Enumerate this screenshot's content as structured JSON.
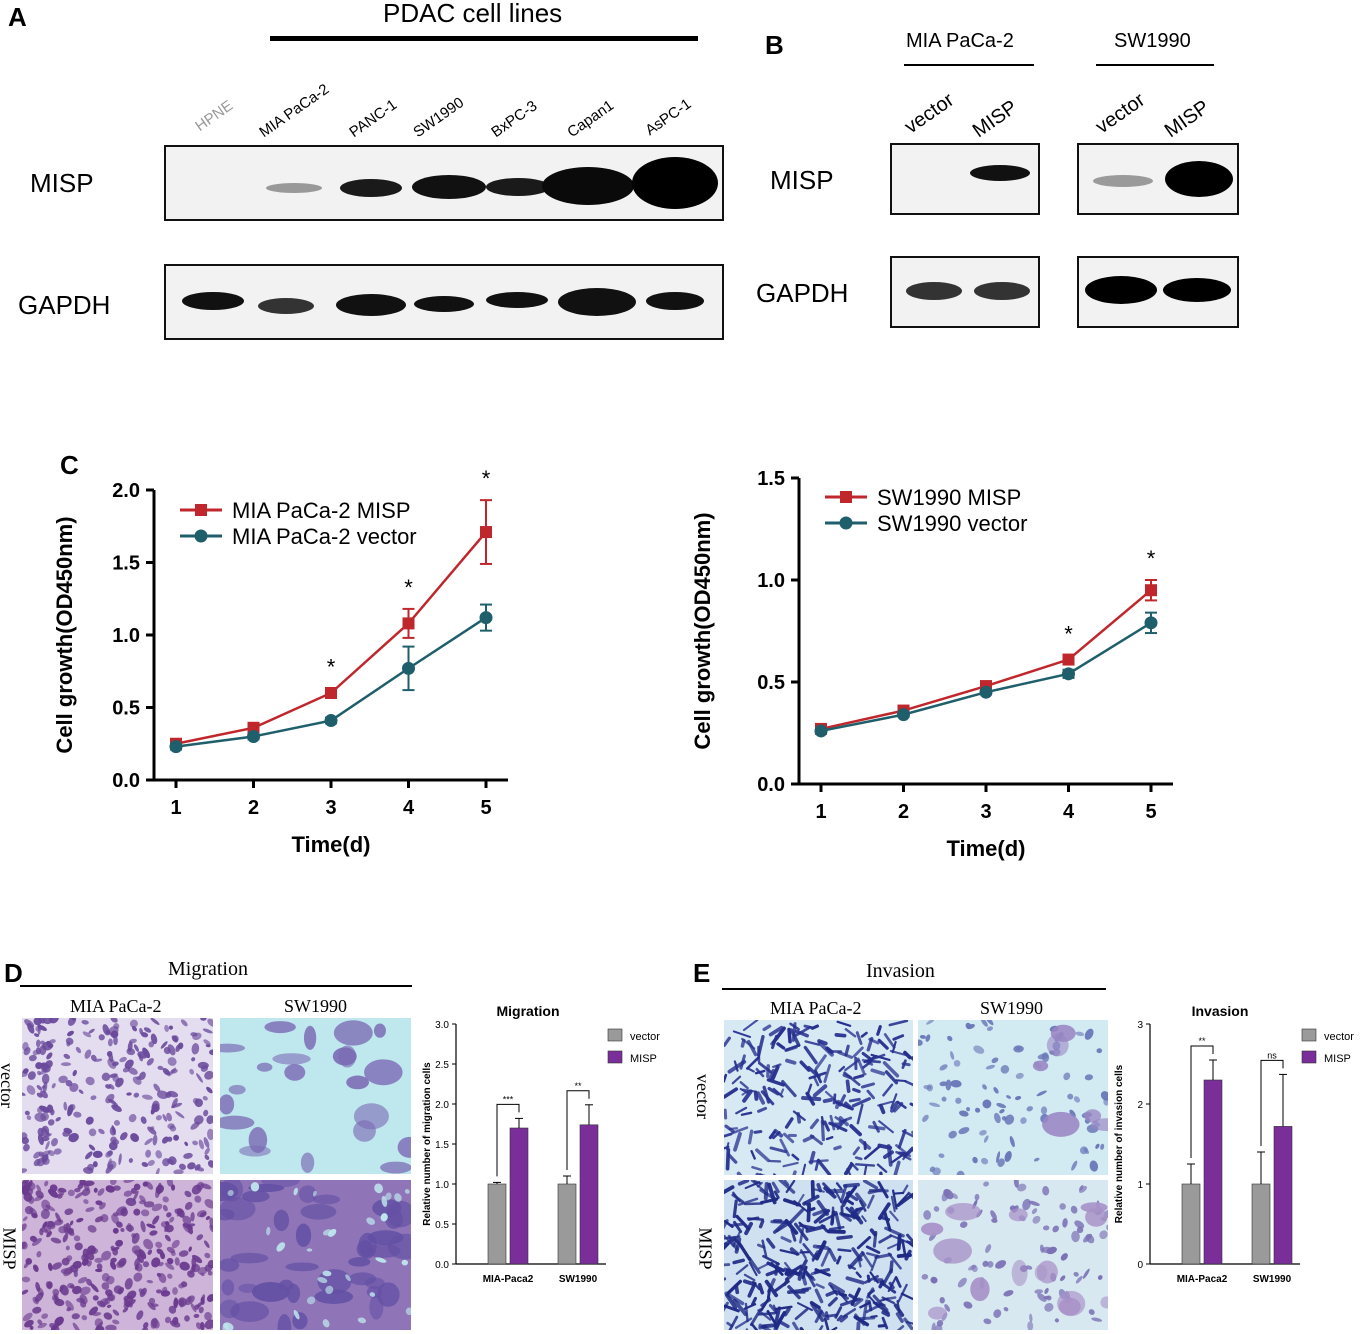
{
  "panels": {
    "a": "A",
    "b": "B",
    "c": "C",
    "d": "D",
    "e": "E"
  },
  "panel_a": {
    "header": "PDAC cell lines",
    "lanes": [
      "HPNE",
      "MIA PaCa-2",
      "PANC-1",
      "SW1990",
      "BxPC-3",
      "Capan1",
      "AsPC-1"
    ],
    "rows": [
      "MISP",
      "GAPDH"
    ]
  },
  "panel_b": {
    "groups": [
      "MIA PaCa-2",
      "SW1990"
    ],
    "lanes": [
      "vector",
      "MISP",
      "vector",
      "MISP"
    ],
    "rows": [
      "MISP",
      "GAPDH"
    ]
  },
  "panel_d": {
    "title": "Migration",
    "cols": [
      "MIA PaCa-2",
      "SW1990"
    ],
    "rows": [
      "vector",
      "MISP"
    ]
  },
  "panel_e": {
    "title": "Invasion",
    "cols": [
      "MIA PaCa-2",
      "SW1990"
    ],
    "rows": [
      "vector",
      "MISP"
    ]
  },
  "colors": {
    "misp": "#c0272d",
    "vector": "#1f5f6b",
    "bar_vector": "#9a9a9a",
    "bar_misp": "#7a2e9a",
    "crystal": "#7b4aa8",
    "stain_blue": "#2f3a9a"
  },
  "chart_data": [
    {
      "type": "line",
      "xlabel": "Time(d)",
      "ylabel": "Cell growth(OD450nm)",
      "x": [
        1,
        2,
        3,
        4,
        5
      ],
      "ylim": [
        0,
        2.0
      ],
      "yticks": [
        "0.0",
        "0.5",
        "1.0",
        "1.5",
        "2.0"
      ],
      "series": [
        {
          "name": "MIA PaCa-2 MISP",
          "values": [
            0.25,
            0.36,
            0.6,
            1.08,
            1.71
          ],
          "err": [
            0.02,
            0.02,
            0.03,
            0.1,
            0.22
          ]
        },
        {
          "name": "MIA PaCa-2 vector",
          "values": [
            0.23,
            0.3,
            0.41,
            0.77,
            1.12
          ],
          "err": [
            0.02,
            0.02,
            0.02,
            0.15,
            0.09
          ]
        }
      ],
      "annotations": [
        {
          "x": 3,
          "text": "*"
        },
        {
          "x": 4,
          "text": "*"
        },
        {
          "x": 5,
          "text": "*"
        }
      ],
      "legend": "top-left"
    },
    {
      "type": "line",
      "xlabel": "Time(d)",
      "ylabel": "Cell growth(OD450nm)",
      "x": [
        1,
        2,
        3,
        4,
        5
      ],
      "ylim": [
        0,
        1.5
      ],
      "yticks": [
        "0.0",
        "0.5",
        "1.0",
        "1.5"
      ],
      "series": [
        {
          "name": "SW1990 MISP",
          "values": [
            0.27,
            0.36,
            0.48,
            0.61,
            0.95
          ],
          "err": [
            0.01,
            0.01,
            0.01,
            0.02,
            0.05
          ]
        },
        {
          "name": "SW1990 vector",
          "values": [
            0.26,
            0.34,
            0.45,
            0.54,
            0.79
          ],
          "err": [
            0.01,
            0.01,
            0.01,
            0.02,
            0.05
          ]
        }
      ],
      "annotations": [
        {
          "x": 4,
          "text": "*"
        },
        {
          "x": 5,
          "text": "*"
        }
      ],
      "legend": "top-left"
    },
    {
      "type": "bar",
      "title": "Migration",
      "ylabel": "Relative number of migration cells",
      "categories": [
        "MIA-Paca2",
        "SW1990"
      ],
      "ylim": [
        0,
        3.0
      ],
      "yticks": [
        "0.0",
        "0.5",
        "1.0",
        "1.5",
        "2.0",
        "2.5",
        "3.0"
      ],
      "series": [
        {
          "name": "vector",
          "values": [
            1.0,
            1.0
          ],
          "err": [
            0.02,
            0.1
          ]
        },
        {
          "name": "MISP",
          "values": [
            1.7,
            1.74
          ],
          "err": [
            0.12,
            0.25
          ]
        }
      ],
      "annotations": [
        {
          "category": "MIA-Paca2",
          "text": "***"
        },
        {
          "category": "SW1990",
          "text": "**"
        }
      ],
      "legend": "top-right"
    },
    {
      "type": "bar",
      "title": "Invasion",
      "ylabel": "Relative number of invasion cells",
      "categories": [
        "MIA-Paca2",
        "SW1990"
      ],
      "ylim": [
        0,
        3
      ],
      "yticks": [
        "0",
        "1",
        "2",
        "3"
      ],
      "series": [
        {
          "name": "vector",
          "values": [
            1.0,
            1.0
          ],
          "err": [
            0.25,
            0.4
          ]
        },
        {
          "name": "MISP",
          "values": [
            2.3,
            1.72
          ],
          "err": [
            0.25,
            0.65
          ]
        }
      ],
      "annotations": [
        {
          "category": "MIA-Paca2",
          "text": "**"
        },
        {
          "category": "SW1990",
          "text": "ns"
        }
      ],
      "legend": "top-right"
    }
  ]
}
